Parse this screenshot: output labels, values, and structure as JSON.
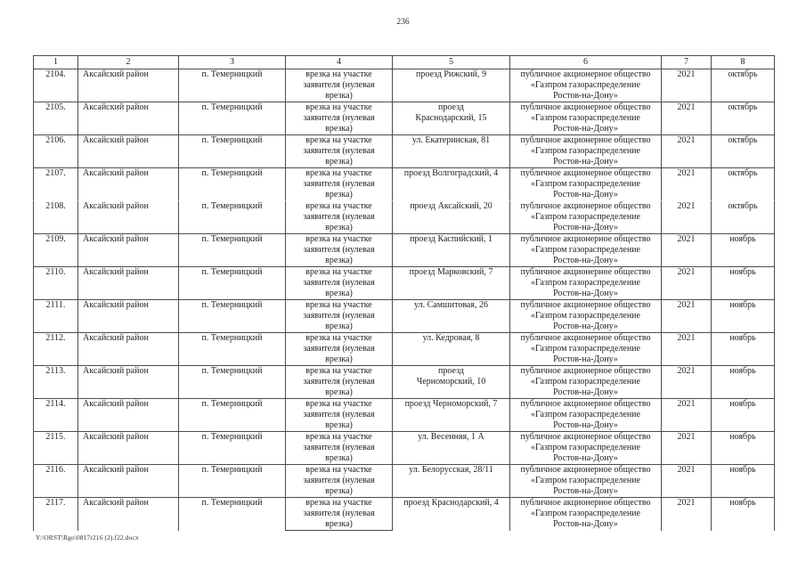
{
  "page": {
    "number": "236",
    "footer_path": "Y:\\ORST\\Rgo\\0817r216 (2).f22.docx"
  },
  "table": {
    "columns": [
      "1",
      "2",
      "3",
      "4",
      "5",
      "6",
      "7",
      "8"
    ],
    "rows": [
      {
        "cells": [
          "2104.",
          "Аксайский район",
          "п. Темерницкий",
          "врезка на участке\nзаявителя (нулевая\nврезка)",
          "проезд Рижский, 9",
          "публичное акционерное общество\n«Газпром газораспределение\nРостов-на-Дону»",
          "2021",
          "октябрь"
        ]
      },
      {
        "cells": [
          "2105.",
          "Аксайский район",
          "п. Темерницкий",
          "врезка на участке\nзаявителя (нулевая\nврезка)",
          "проезд\nКраснодарский, 15",
          "публичное акционерное общество\n«Газпром газораспределение\nРостов-на-Дону»",
          "2021",
          "октябрь"
        ]
      },
      {
        "cells": [
          "2106.",
          "Аксайский район",
          "п. Темерницкий",
          "врезка на участке\nзаявителя (нулевая\nврезка)",
          "ул. Екатеринская, 81",
          "публичное акционерное общество\n«Газпром газораспределение\nРостов-на-Дону»",
          "2021",
          "октябрь"
        ]
      },
      {
        "cells": [
          "2107.",
          "Аксайский район",
          "п. Темерницкий",
          "врезка на участке\nзаявителя (нулевая\nврезка)",
          "проезд Волгоградский, 4",
          "публичное акционерное общество\n«Газпром газораспределение\nРостов-на-Дону»",
          "2021",
          "октябрь"
        ]
      },
      {
        "cells": [
          "2108.",
          "Аксайский район",
          "п. Темерницкий",
          "врезка на участке\nзаявителя (нулевая\nврезка)",
          "проезд Аксайский, 20",
          "публичное акционерное общество\n«Газпром газораспределение\nРостов-на-Дону»",
          "2021",
          "октябрь"
        ],
        "no_top_divider": true
      },
      {
        "cells": [
          "2109.",
          "Аксайский район",
          "п. Темерницкий",
          "врезка на участке\nзаявителя (нулевая\nврезка)",
          "проезд Каспийский, 1",
          "публичное акционерное общество\n«Газпром газораспределение\nРостов-на-Дону»",
          "2021",
          "ноябрь"
        ]
      },
      {
        "cells": [
          "2110.",
          "Аксайский район",
          "п. Темерницкий",
          "врезка на участке\nзаявителя (нулевая\nврезка)",
          "проезд Марковский, 7",
          "публичное акционерное общество\n«Газпром газораспределение\nРостов-на-Дону»",
          "2021",
          "ноябрь"
        ]
      },
      {
        "cells": [
          "2111.",
          "Аксайский район",
          "п. Темерницкий",
          "врезка на участке\nзаявителя (нулевая\nврезка)",
          "ул. Самшитовая, 26",
          "публичное акционерное общество\n«Газпром газораспределение\nРостов-на-Дону»",
          "2021",
          "ноябрь"
        ]
      },
      {
        "cells": [
          "2112.",
          "Аксайский район",
          "п. Темерницкий",
          "врезка на участке\nзаявителя (нулевая\nврезка)",
          "ул. Кедровая, 8",
          "публичное акционерное общество\n«Газпром газораспределение\nРостов-на-Дону»",
          "2021",
          "ноябрь"
        ]
      },
      {
        "cells": [
          "2113.",
          "Аксайский район",
          "п. Темерницкий",
          "врезка на участке\nзаявителя (нулевая\nврезка)",
          "проезд\nЧерноморский, 10",
          "публичное акционерное общество\n«Газпром газораспределение\nРостов-на-Дону»",
          "2021",
          "ноябрь"
        ]
      },
      {
        "cells": [
          "2114.",
          "Аксайский район",
          "п. Темерницкий",
          "врезка на участке\nзаявителя (нулевая\nврезка)",
          "проезд Черноморский, 7",
          "публичное акционерное общество\n«Газпром газораспределение\nРостов-на-Дону»",
          "2021",
          "ноябрь"
        ]
      },
      {
        "cells": [
          "2115.",
          "Аксайский район",
          "п. Темерницкий",
          "врезка на участке\nзаявителя (нулевая\nврезка)",
          "ул. Весенняя, 1 А",
          "публичное акционерное общество\n«Газпром газораспределение\nРостов-на-Дону»",
          "2021",
          "ноябрь"
        ]
      },
      {
        "cells": [
          "2116.",
          "Аксайский район",
          "п. Темерницкий",
          "врезка на участке\nзаявителя (нулевая\nврезка)",
          "ул. Белорусская, 28/11",
          "публичное акционерное общество\n«Газпром газораспределение\nРостов-на-Дону»",
          "2021",
          "ноябрь"
        ]
      },
      {
        "cells": [
          "2117.",
          "Аксайский район",
          "п. Темерницкий",
          "врезка на участке\nзаявителя (нулевая\nврезка)",
          "проезд Краснодарский, 4",
          "публичное акционерное общество\n«Газпром газораспределение\nРостов-на-Дону»",
          "2021",
          "ноябрь"
        ]
      }
    ]
  }
}
